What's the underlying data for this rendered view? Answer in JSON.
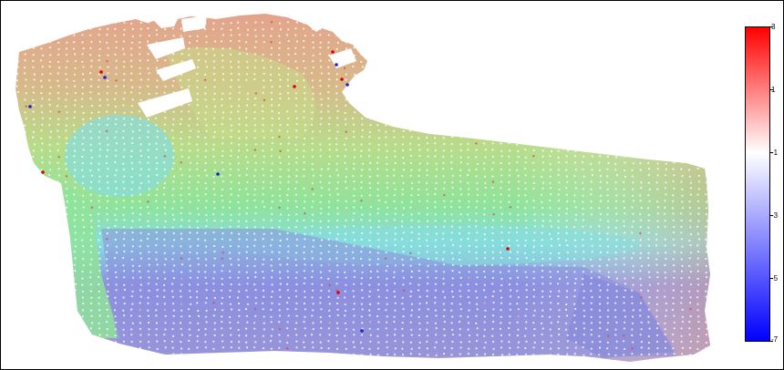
{
  "figure": {
    "background": "#ffffff",
    "border_color": "#000000"
  },
  "colorbar": {
    "ticks": [
      "3",
      "1",
      "-1",
      "-3",
      "-5",
      "-7"
    ],
    "tick_values": [
      3,
      1,
      -1,
      -3,
      -5,
      -7
    ],
    "range": [
      -7,
      3
    ],
    "colors": {
      "max": "#ff0000",
      "mid": "#ffffff",
      "min": "#0000ff"
    }
  },
  "surface_colors": {
    "top": "#e3a48c",
    "upper": "#b8dc8a",
    "middle": "#8fe39a",
    "cyan": "#86dddd",
    "lower": "#8c8fe0",
    "bottom": "#a79ad0"
  }
}
